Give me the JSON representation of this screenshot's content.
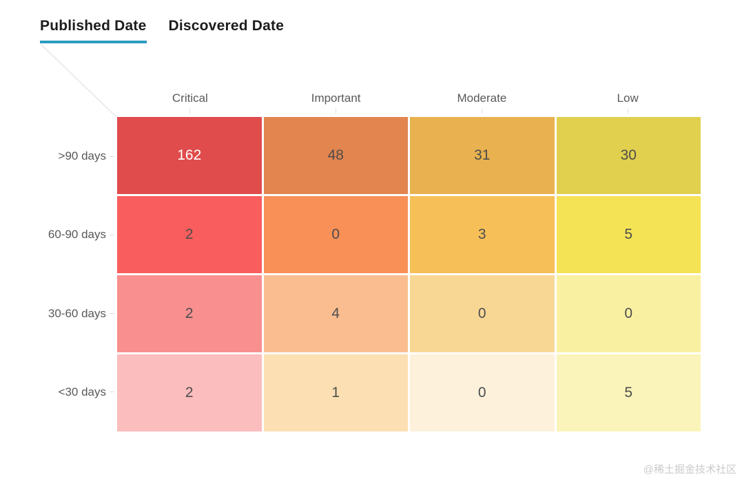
{
  "tab_bar": {
    "tabs": [
      {
        "label": "Published Date",
        "active": true
      },
      {
        "label": "Discovered Date",
        "active": false
      }
    ]
  },
  "colors": {
    "tab_underline": "#2c9cc1",
    "cell_text_dark": "#4d4d4d",
    "cell_text_light": "#ffffff",
    "tick": "#dddddd",
    "connector_line": "#ececec"
  },
  "watermark": "@稀土掘金技术社区",
  "chart_data": {
    "type": "heatmap",
    "columns": [
      "Critical",
      "Important",
      "Moderate",
      "Low"
    ],
    "rows": [
      ">90 days",
      "60-90 days",
      "30-60 days",
      "<30 days"
    ],
    "values": [
      [
        162,
        48,
        31,
        30
      ],
      [
        2,
        0,
        3,
        5
      ],
      [
        2,
        4,
        0,
        0
      ],
      [
        2,
        1,
        0,
        5
      ]
    ],
    "cell_colors": [
      [
        "#e04b4b",
        "#e2854e",
        "#e9b14f",
        "#e0d04e"
      ],
      [
        "#f95d5d",
        "#f99057",
        "#f7bf57",
        "#f5e356"
      ],
      [
        "#f98f8f",
        "#fabd8f",
        "#f8d795",
        "#f9f0a1"
      ],
      [
        "#fbbdbd",
        "#fcdfb2",
        "#fdf1db",
        "#faf4ba"
      ]
    ],
    "light_text_cells": [
      [
        0,
        0
      ]
    ],
    "legend_position": "none",
    "grid_gaps": "white"
  }
}
